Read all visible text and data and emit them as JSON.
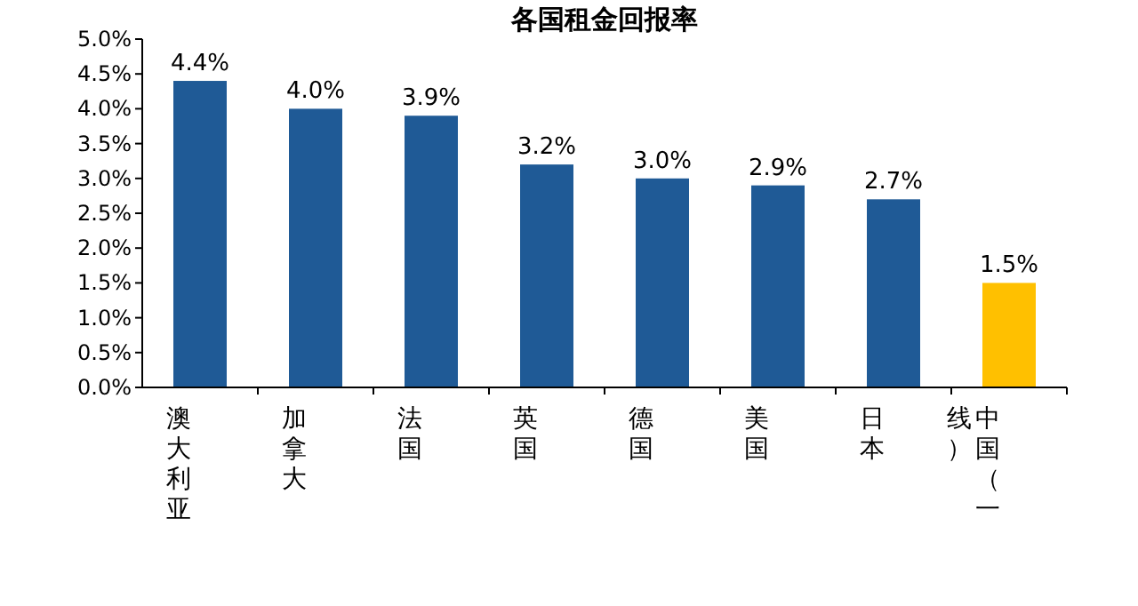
{
  "chart_data": {
    "type": "bar",
    "title": "各国租金回报率",
    "categories": [
      "澳大利亚",
      "加拿大",
      "法国",
      "英国",
      "德国",
      "美国",
      "日本",
      "中国（一线）"
    ],
    "values": [
      4.4,
      4.0,
      3.9,
      3.2,
      3.0,
      2.9,
      2.7,
      1.5
    ],
    "colors": [
      "#1f5a96",
      "#1f5a96",
      "#1f5a96",
      "#1f5a96",
      "#1f5a96",
      "#1f5a96",
      "#1f5a96",
      "#ffc000"
    ],
    "value_labels": [
      "4.4%",
      "4.0%",
      "3.9%",
      "3.2%",
      "3.0%",
      "2.9%",
      "2.7%",
      "1.5%"
    ],
    "ylim": [
      0,
      5
    ],
    "yticks": [
      {
        "value": 0,
        "label": "0.0%"
      },
      {
        "value": 0.5,
        "label": "0.5%"
      },
      {
        "value": 1,
        "label": "1.0%"
      },
      {
        "value": 1.5,
        "label": "1.5%"
      },
      {
        "value": 2,
        "label": "2.0%"
      },
      {
        "value": 2.5,
        "label": "2.5%"
      },
      {
        "value": 3,
        "label": "3.0%"
      },
      {
        "value": 3.5,
        "label": "3.5%"
      },
      {
        "value": 4,
        "label": "4.0%"
      },
      {
        "value": 4.5,
        "label": "4.5%"
      },
      {
        "value": 5,
        "label": "5.0%"
      }
    ],
    "grid": false
  }
}
